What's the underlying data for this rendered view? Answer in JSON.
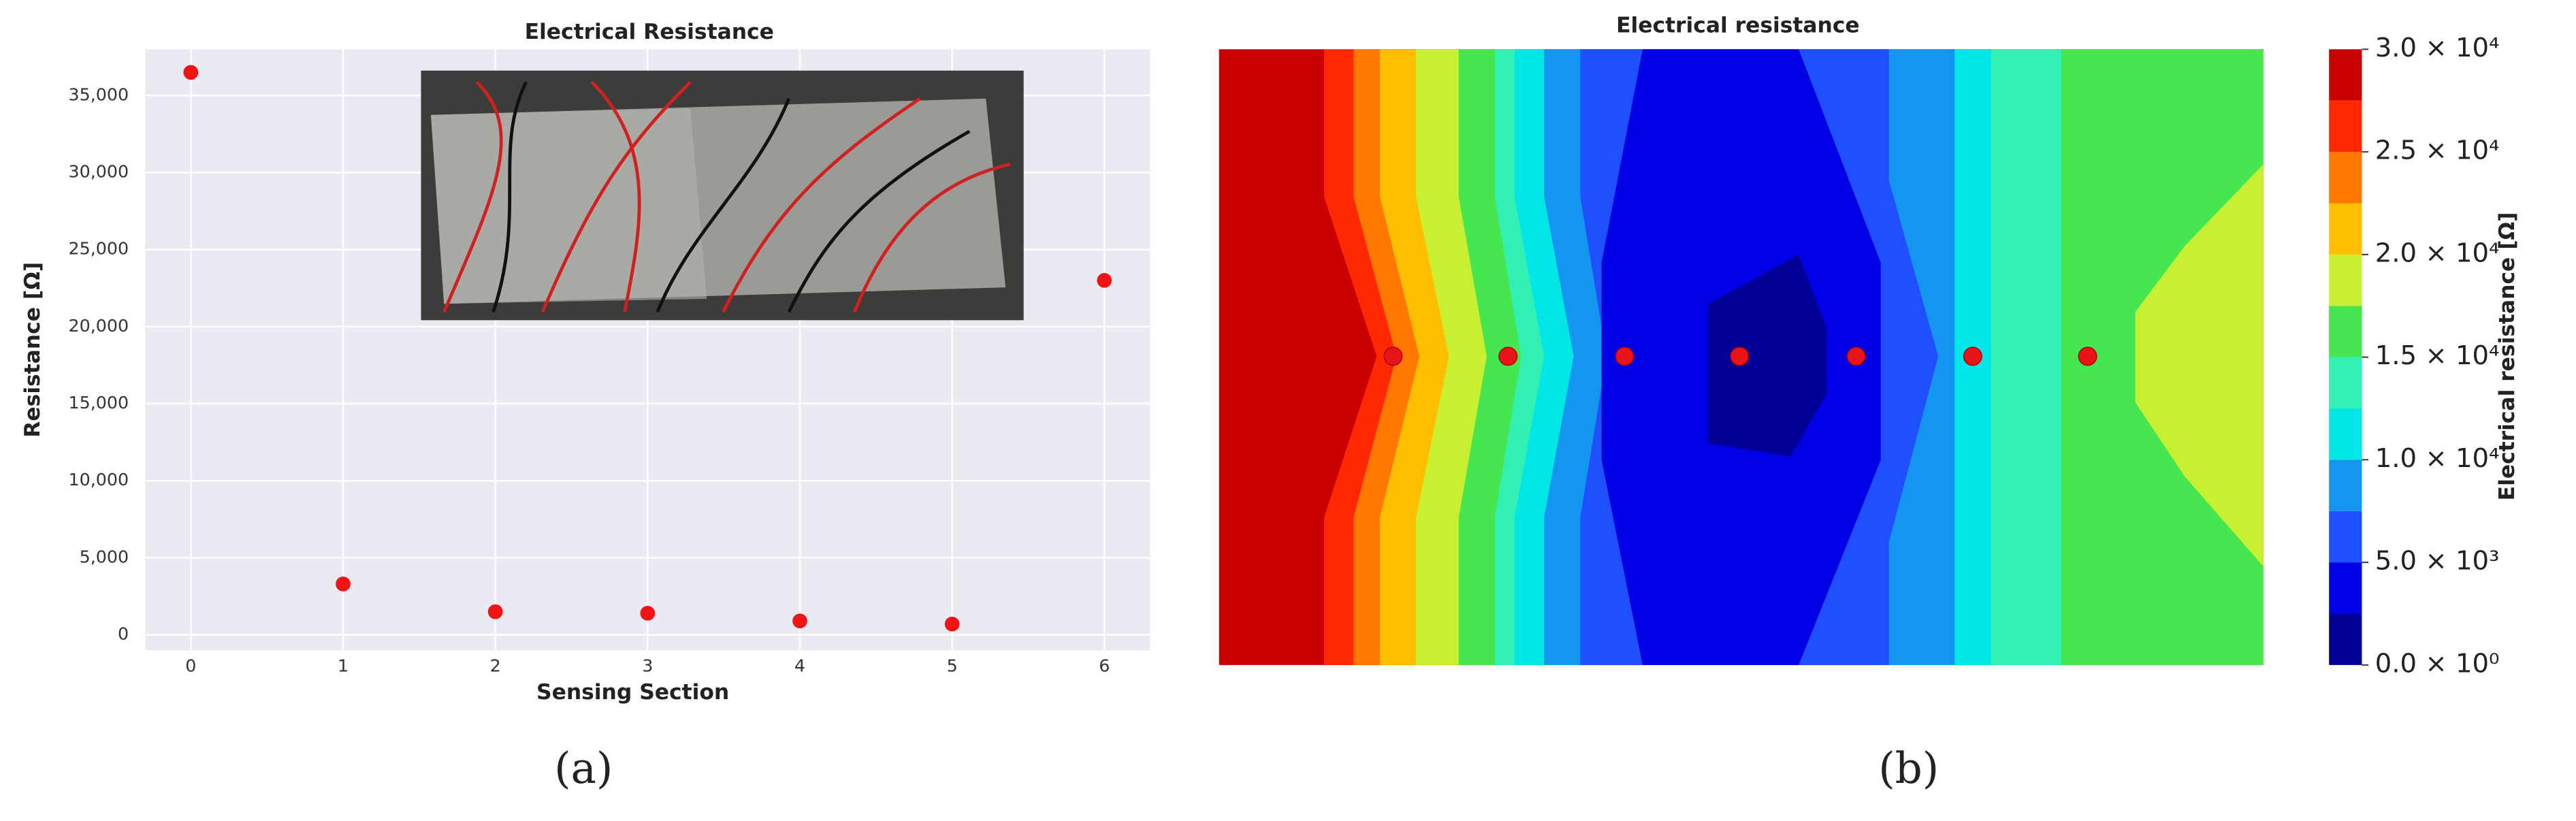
{
  "chart_data": [
    {
      "type": "scatter",
      "title": "Electrical Resistance",
      "xlabel": "Sensing Section",
      "ylabel": "Resistance [Ω]",
      "x": [
        0,
        1,
        2,
        3,
        4,
        5,
        6
      ],
      "values": [
        36500,
        3300,
        1500,
        1400,
        900,
        700,
        23000
      ],
      "color": "#f01414",
      "xlim": [
        -0.3,
        6.3
      ],
      "xticks": [
        0,
        1,
        2,
        3,
        4,
        5,
        6
      ],
      "ylim": [
        -1000,
        38000
      ],
      "yticks": [
        0,
        {
          "value": 5000,
          "label": "5,000"
        },
        {
          "value": 10000,
          "label": "10,000"
        },
        {
          "value": 15000,
          "label": "15,000"
        },
        {
          "value": 20000,
          "label": "20,000"
        },
        {
          "value": 25000,
          "label": "25,000"
        },
        {
          "value": 30000,
          "label": "30,000"
        },
        {
          "value": 35000,
          "label": "35,000"
        }
      ],
      "grid": true,
      "caption": "(a)"
    },
    {
      "type": "contour",
      "title": "Electrical resistance",
      "colorbar_label": "Electrical resistance [Ω]",
      "levels": [
        0,
        2500,
        5000,
        7500,
        10000,
        12500,
        15000,
        17500,
        20000,
        22500,
        25000,
        27500,
        30000
      ],
      "colors": [
        "#000096",
        "#0000e6",
        "#1e50ff",
        "#1496f0",
        "#00e6e6",
        "#32f0b4",
        "#46e650",
        "#c8f032",
        "#ffbe00",
        "#ff7800",
        "#ff2800",
        "#c80000"
      ],
      "clim": [
        0,
        30000
      ],
      "cticks": [
        {
          "value": 0,
          "label": "0.0 × 10⁰"
        },
        {
          "value": 5000,
          "label": "5.0 × 10³"
        },
        {
          "value": 10000,
          "label": "1.0 × 10⁴"
        },
        {
          "value": 15000,
          "label": "1.5 × 10⁴"
        },
        {
          "value": 20000,
          "label": "2.0 × 10⁴"
        },
        {
          "value": 25000,
          "label": "2.5 × 10⁴"
        },
        {
          "value": 30000,
          "label": "3.0 × 10⁴"
        }
      ],
      "marker_color": "#e8141a",
      "caption": "(b)"
    }
  ]
}
